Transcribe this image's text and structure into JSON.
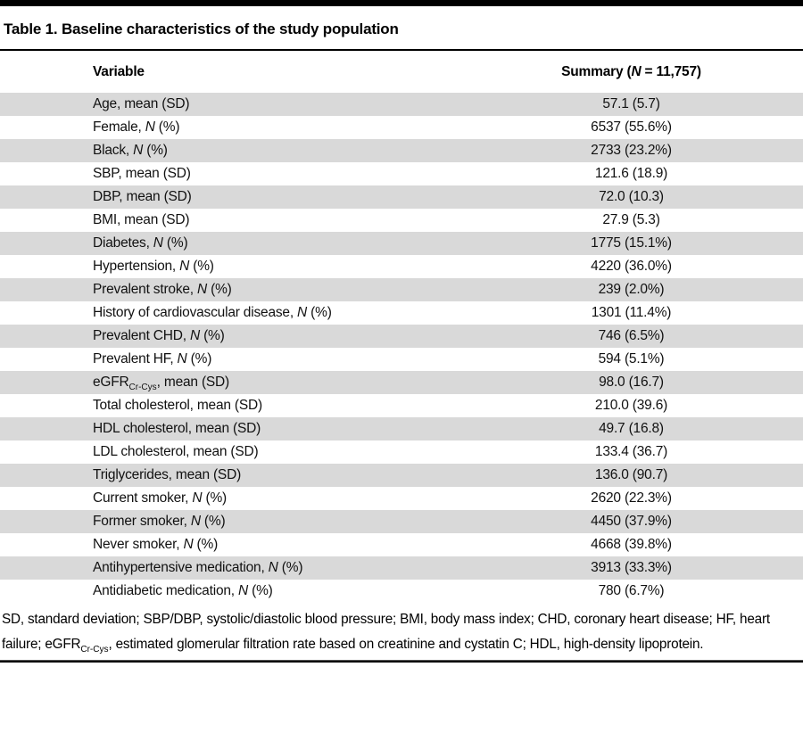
{
  "colors": {
    "stripe": "#d9d9d9",
    "rule": "#000000",
    "text": "#111111"
  },
  "title": "Table 1. Baseline characteristics of the study population",
  "header": {
    "variable": "Variable",
    "summary": {
      "prefix": "Summary (",
      "n": "N",
      "suffix": " = 11,757)"
    }
  },
  "rows": [
    {
      "label": [
        {
          "t": "Age, mean (SD)"
        }
      ],
      "value": "57.1 (5.7)"
    },
    {
      "label": [
        {
          "t": "Female, "
        },
        {
          "t": "N",
          "s": "i"
        },
        {
          "t": " (%)"
        }
      ],
      "value": "6537 (55.6%)"
    },
    {
      "label": [
        {
          "t": "Black, "
        },
        {
          "t": "N",
          "s": "i"
        },
        {
          "t": " (%)"
        }
      ],
      "value": "2733 (23.2%)"
    },
    {
      "label": [
        {
          "t": "SBP, mean (SD)"
        }
      ],
      "value": "121.6 (18.9)"
    },
    {
      "label": [
        {
          "t": "DBP, mean (SD)"
        }
      ],
      "value": "72.0 (10.3)"
    },
    {
      "label": [
        {
          "t": "BMI, mean (SD)"
        }
      ],
      "value": "27.9 (5.3)"
    },
    {
      "label": [
        {
          "t": "Diabetes, "
        },
        {
          "t": "N",
          "s": "i"
        },
        {
          "t": " (%)"
        }
      ],
      "value": "1775 (15.1%)"
    },
    {
      "label": [
        {
          "t": "Hypertension, "
        },
        {
          "t": "N",
          "s": "i"
        },
        {
          "t": " (%)"
        }
      ],
      "value": "4220 (36.0%)"
    },
    {
      "label": [
        {
          "t": "Prevalent stroke, "
        },
        {
          "t": "N",
          "s": "i"
        },
        {
          "t": " (%)"
        }
      ],
      "value": "239 (2.0%)"
    },
    {
      "label": [
        {
          "t": "History of cardiovascular disease, "
        },
        {
          "t": "N",
          "s": "i"
        },
        {
          "t": " (%)"
        }
      ],
      "value": "1301 (11.4%)"
    },
    {
      "label": [
        {
          "t": "Prevalent CHD, "
        },
        {
          "t": "N",
          "s": "i"
        },
        {
          "t": " (%)"
        }
      ],
      "value": "746 (6.5%)"
    },
    {
      "label": [
        {
          "t": "Prevalent HF, "
        },
        {
          "t": "N",
          "s": "i"
        },
        {
          "t": " (%)"
        }
      ],
      "value": "594 (5.1%)"
    },
    {
      "label": [
        {
          "t": "eGFR"
        },
        {
          "t": "Cr-Cys",
          "s": "sub"
        },
        {
          "t": ", mean (SD)"
        }
      ],
      "value": "98.0 (16.7)"
    },
    {
      "label": [
        {
          "t": "Total cholesterol, mean (SD)"
        }
      ],
      "value": "210.0 (39.6)"
    },
    {
      "label": [
        {
          "t": "HDL cholesterol, mean (SD)"
        }
      ],
      "value": "49.7 (16.8)"
    },
    {
      "label": [
        {
          "t": "LDL cholesterol, mean (SD)"
        }
      ],
      "value": "133.4 (36.7)"
    },
    {
      "label": [
        {
          "t": "Triglycerides, mean (SD)"
        }
      ],
      "value": "136.0 (90.7)"
    },
    {
      "label": [
        {
          "t": "Current smoker, "
        },
        {
          "t": "N",
          "s": "i"
        },
        {
          "t": " (%)"
        }
      ],
      "value": "2620 (22.3%)"
    },
    {
      "label": [
        {
          "t": "Former smoker, "
        },
        {
          "t": "N",
          "s": "i"
        },
        {
          "t": " (%)"
        }
      ],
      "value": "4450 (37.9%)"
    },
    {
      "label": [
        {
          "t": "Never smoker, "
        },
        {
          "t": "N",
          "s": "i"
        },
        {
          "t": " (%)"
        }
      ],
      "value": "4668 (39.8%)"
    },
    {
      "label": [
        {
          "t": "Antihypertensive medication, "
        },
        {
          "t": "N",
          "s": "i"
        },
        {
          "t": " (%)"
        }
      ],
      "value": "3913 (33.3%)"
    },
    {
      "label": [
        {
          "t": "Antidiabetic medication, "
        },
        {
          "t": "N",
          "s": "i"
        },
        {
          "t": " (%)"
        }
      ],
      "value": "780 (6.7%)"
    }
  ],
  "footnote": [
    {
      "t": "SD, standard deviation; SBP/DBP, systolic/diastolic blood pressure; BMI, body mass index; CHD, coronary heart disease; HF, heart failure; eGFR"
    },
    {
      "t": "Cr-Cys",
      "s": "sub"
    },
    {
      "t": ", estimated glomerular filtration rate based on creatinine and cystatin C; HDL, high-density lipoprotein."
    }
  ]
}
